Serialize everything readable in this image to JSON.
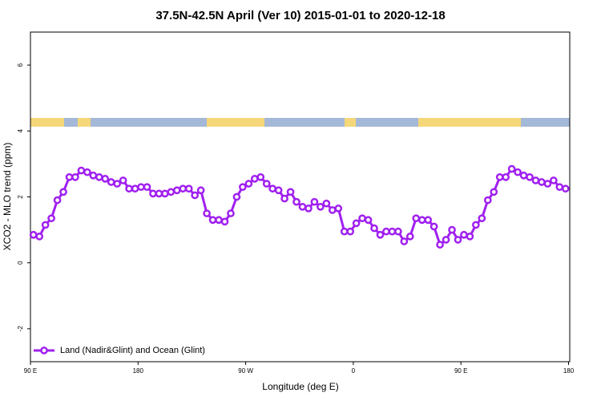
{
  "chart_data": {
    "type": "line",
    "title": "37.5N-42.5N April (Ver 10)   2015-01-01 to 2020-12-18",
    "x_label": "Longitude (deg E)",
    "y_label": "XCO2 - MLO trend (ppm)",
    "x": [
      92.5,
      97.5,
      102.5,
      107.5,
      112.5,
      117.5,
      122.5,
      127.5,
      132.5,
      137.5,
      142.5,
      147.5,
      152.5,
      157.5,
      162.5,
      167.5,
      172.5,
      177.5,
      182.5,
      187.5,
      192.5,
      197.5,
      202.5,
      207.5,
      212.5,
      217.5,
      222.5,
      227.5,
      232.5,
      237.5,
      242.5,
      247.5,
      252.5,
      257.5,
      262.5,
      267.5,
      272.5,
      277.5,
      282.5,
      287.5,
      292.5,
      297.5,
      302.5,
      307.5,
      312.5,
      317.5,
      322.5,
      327.5,
      332.5,
      337.5,
      342.5,
      347.5,
      352.5,
      357.5,
      362.5,
      367.5,
      372.5,
      377.5,
      382.5,
      387.5,
      392.5,
      397.5,
      402.5,
      407.5,
      412.5,
      417.5,
      422.5,
      427.5,
      432.5,
      437.5,
      442.5,
      447.5,
      452.5,
      457.5,
      462.5,
      467.5,
      472.5,
      477.5,
      482.5,
      487.5,
      492.5,
      497.5,
      502.5,
      507.5,
      512.5,
      517.5,
      522.5,
      527.5,
      532.5,
      537.5
    ],
    "series": [
      {
        "name": "Land (Nadir&Glint) and Ocean (Glint)",
        "color": "#a020f0",
        "values": [
          0.85,
          0.8,
          1.15,
          1.35,
          1.9,
          2.15,
          2.6,
          2.6,
          2.8,
          2.75,
          2.65,
          2.6,
          2.55,
          2.45,
          2.4,
          2.5,
          2.25,
          2.25,
          2.3,
          2.3,
          2.1,
          2.1,
          2.1,
          2.15,
          2.2,
          2.25,
          2.25,
          2.05,
          2.2,
          1.5,
          1.3,
          1.3,
          1.25,
          1.5,
          2.0,
          2.3,
          2.4,
          2.55,
          2.6,
          2.4,
          2.25,
          2.2,
          1.95,
          2.15,
          1.85,
          1.7,
          1.65,
          1.85,
          1.7,
          1.8,
          1.6,
          1.65,
          0.95,
          0.95,
          1.2,
          1.35,
          1.3,
          1.05,
          0.85,
          0.95,
          0.95,
          0.95,
          0.65,
          0.8,
          1.35,
          1.3,
          1.3,
          1.1,
          0.55,
          0.7,
          1.0,
          0.7,
          0.85,
          0.8,
          1.15,
          1.35,
          1.9,
          2.15,
          2.6,
          2.6,
          2.85,
          2.75,
          2.65,
          2.6,
          2.5,
          2.45,
          2.4,
          2.5,
          2.3,
          2.25
        ]
      }
    ],
    "xlim": [
      90,
      541
    ],
    "xticks": [
      {
        "value": 90,
        "label": "90 E"
      },
      180,
      {
        "value": 270,
        "label": "90 W"
      },
      {
        "value": 360,
        "label": "0"
      },
      {
        "value": 450,
        "label": "90 E"
      },
      {
        "value": 540,
        "label": "180"
      }
    ],
    "ylim": [
      -3,
      7
    ],
    "yticks": [
      -2,
      0,
      2,
      4,
      6
    ],
    "legend": "bottom-left"
  }
}
